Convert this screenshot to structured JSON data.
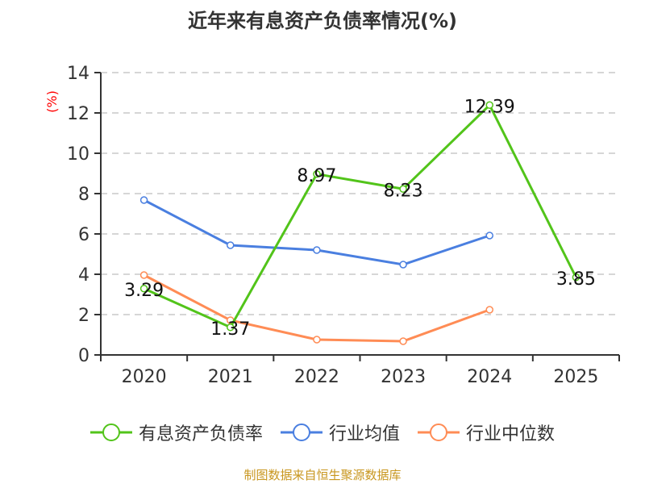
{
  "chart_data": {
    "type": "line",
    "title": "近年来有息资产负债率情况(%)",
    "ylabel": "(%)",
    "categories": [
      "2020",
      "2021",
      "2022",
      "2023",
      "2024",
      "2025"
    ],
    "ylim": [
      0,
      14
    ],
    "yticks": [
      0,
      2,
      4,
      6,
      8,
      10,
      12,
      14
    ],
    "grid": true,
    "legend_position": "bottom",
    "series": [
      {
        "name": "有息资产负债率",
        "color": "#52c41a",
        "values": [
          3.29,
          1.37,
          8.97,
          8.23,
          12.39,
          3.85
        ],
        "labels": [
          "3.29",
          "1.37",
          "8.97",
          "8.23",
          "12.39",
          "3.85"
        ]
      },
      {
        "name": "行业均值",
        "color": "#4a7fe0",
        "values": [
          7.68,
          5.44,
          5.2,
          4.48,
          5.92,
          null
        ]
      },
      {
        "name": "行业中位数",
        "color": "#ff8c55",
        "values": [
          3.96,
          1.72,
          0.76,
          0.68,
          2.24,
          null
        ]
      }
    ]
  },
  "source": "制图数据来自恒生聚源数据库"
}
